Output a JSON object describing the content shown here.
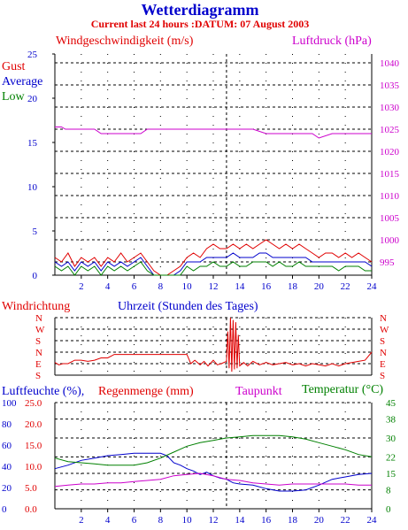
{
  "header": {
    "title": "Wetterdiagramm",
    "subtitle": "Current last 24 hours :DATUM: 07 August 2003"
  },
  "colors": {
    "red": "#e00000",
    "blue": "#0000cc",
    "green": "#008000",
    "magenta": "#cc00cc",
    "axis": "#000000",
    "grid": "#000000"
  },
  "chart_data": [
    {
      "type": "line",
      "id": "wind",
      "title": "Windgeschwindigkeit (m/s)",
      "right_title": "Luftdruck (hPa)",
      "xlim": [
        0,
        24
      ],
      "x_ticks": [
        2,
        4,
        6,
        8,
        10,
        12,
        14,
        16,
        18,
        20,
        22,
        24
      ],
      "ylim": [
        0,
        25
      ],
      "y_ticks": [
        0,
        5,
        10,
        15,
        20,
        25
      ],
      "y2lim": [
        992,
        1042
      ],
      "y2_ticks": [
        995,
        1000,
        1005,
        1010,
        1015,
        1020,
        1025,
        1030,
        1035,
        1040
      ],
      "grid": true,
      "legend": [
        "Gust",
        "Average",
        "Low"
      ],
      "series": [
        {
          "name": "Gust",
          "color": "#e00000",
          "x": [
            0,
            0.5,
            1,
            1.5,
            2,
            2.5,
            3,
            3.5,
            4,
            4.5,
            5,
            5.5,
            6,
            6.5,
            7,
            7.5,
            8,
            8.5,
            9,
            9.5,
            10,
            10.5,
            11,
            11.5,
            12,
            12.5,
            13,
            13.5,
            14,
            14.5,
            15,
            15.5,
            16,
            16.5,
            17,
            17.5,
            18,
            18.5,
            19,
            19.5,
            20,
            20.5,
            21,
            21.5,
            22,
            22.5,
            23,
            23.5,
            24
          ],
          "values": [
            2.0,
            1.5,
            2.5,
            1.0,
            2.0,
            1.5,
            2.0,
            1.0,
            2.0,
            1.5,
            2.5,
            1.5,
            2.0,
            2.5,
            1.5,
            0.5,
            0.0,
            0.0,
            0.5,
            1.0,
            2.0,
            2.5,
            2.0,
            3.0,
            3.5,
            3.0,
            3.0,
            3.5,
            3.0,
            3.5,
            3.0,
            3.5,
            4.0,
            3.5,
            3.0,
            3.5,
            3.0,
            3.5,
            3.0,
            2.5,
            2.0,
            2.5,
            2.5,
            2.0,
            2.5,
            2.0,
            2.5,
            2.0,
            1.5
          ]
        },
        {
          "name": "Average",
          "color": "#0000cc",
          "x": [
            0,
            0.5,
            1,
            1.5,
            2,
            2.5,
            3,
            3.5,
            4,
            4.5,
            5,
            5.5,
            6,
            6.5,
            7,
            7.5,
            8,
            8.5,
            9,
            9.5,
            10,
            10.5,
            11,
            11.5,
            12,
            12.5,
            13,
            13.5,
            14,
            14.5,
            15,
            15.5,
            16,
            16.5,
            17,
            17.5,
            18,
            18.5,
            19,
            19.5,
            20,
            20.5,
            21,
            21.5,
            22,
            22.5,
            23,
            23.5,
            24
          ],
          "values": [
            1.5,
            1.0,
            1.5,
            0.5,
            1.5,
            1.0,
            1.5,
            0.5,
            1.5,
            1.0,
            1.5,
            1.0,
            1.5,
            2.0,
            1.0,
            0.0,
            0.0,
            0.0,
            0.0,
            0.5,
            1.5,
            1.5,
            1.5,
            2.0,
            2.0,
            2.0,
            2.0,
            2.5,
            2.0,
            2.0,
            2.0,
            2.5,
            2.5,
            2.0,
            2.0,
            2.0,
            2.0,
            2.0,
            2.0,
            1.5,
            1.5,
            1.5,
            1.5,
            1.5,
            1.5,
            1.5,
            1.5,
            1.5,
            1.0
          ]
        },
        {
          "name": "Low",
          "color": "#008000",
          "x": [
            0,
            0.5,
            1,
            1.5,
            2,
            2.5,
            3,
            3.5,
            4,
            4.5,
            5,
            5.5,
            6,
            6.5,
            7,
            7.5,
            8,
            8.5,
            9,
            9.5,
            10,
            10.5,
            11,
            11.5,
            12,
            12.5,
            13,
            13.5,
            14,
            14.5,
            15,
            15.5,
            16,
            16.5,
            17,
            17.5,
            18,
            18.5,
            19,
            19.5,
            20,
            20.5,
            21,
            21.5,
            22,
            22.5,
            23,
            23.5,
            24
          ],
          "values": [
            1.0,
            0.5,
            1.0,
            0.0,
            1.0,
            0.5,
            1.0,
            0.0,
            1.0,
            0.5,
            1.0,
            0.5,
            1.0,
            1.5,
            0.5,
            0.0,
            0.0,
            0.0,
            0.0,
            0.0,
            1.0,
            0.5,
            1.0,
            1.0,
            1.5,
            1.0,
            1.0,
            1.5,
            1.0,
            1.0,
            1.5,
            1.5,
            1.5,
            1.0,
            1.5,
            1.0,
            1.0,
            1.5,
            1.0,
            1.0,
            1.0,
            1.0,
            1.0,
            0.5,
            1.0,
            1.0,
            1.0,
            0.5,
            0.5
          ]
        },
        {
          "name": "Luftdruck",
          "axis": "right",
          "color": "#cc00cc",
          "x": [
            0,
            0.5,
            0.8,
            1,
            2,
            3,
            3.5,
            4,
            5,
            6,
            6.5,
            7,
            8,
            9,
            10,
            11,
            12,
            13,
            14,
            15,
            16,
            17,
            18,
            19,
            19.5,
            20,
            21,
            22,
            23,
            24
          ],
          "values": [
            1025.5,
            1025.5,
            1025,
            1025,
            1025,
            1025,
            1024,
            1024,
            1024,
            1024,
            1024,
            1025,
            1025,
            1025,
            1025,
            1025,
            1025,
            1025,
            1025,
            1025,
            1024,
            1024,
            1024,
            1024,
            1024,
            1023,
            1024,
            1024,
            1024,
            1024
          ]
        }
      ]
    },
    {
      "type": "line",
      "id": "direction",
      "title": "Windrichtung",
      "xlabel": "Uhrzeit (Stunden des Tages)",
      "xlim": [
        0,
        24
      ],
      "ylim": [
        0,
        5
      ],
      "y_ticks": [
        "S",
        "E",
        "N",
        "S",
        "W",
        "N"
      ],
      "grid": true,
      "series": [
        {
          "name": "Windrichtung",
          "color": "#e00000",
          "x": [
            0,
            0.3,
            0.6,
            1,
            1.5,
            2,
            2.5,
            3,
            3.5,
            4,
            4.5,
            5,
            6,
            7,
            8,
            9,
            9.5,
            10,
            10.3,
            10.6,
            11,
            11.3,
            11.6,
            12,
            12.3,
            12.6,
            13,
            13.1,
            13.2,
            13.3,
            13.4,
            13.5,
            13.6,
            13.7,
            13.8,
            13.9,
            14,
            14.3,
            14.6,
            15,
            15.5,
            16,
            16.5,
            17,
            17.5,
            18,
            18.5,
            19,
            19.5,
            20,
            20.5,
            21,
            21.5,
            22,
            22.5,
            23,
            23.5,
            24
          ],
          "values": [
            1.1,
            0.9,
            1.0,
            1.0,
            1.3,
            1.3,
            1.2,
            1.3,
            1.5,
            1.5,
            1.8,
            1.8,
            1.8,
            1.8,
            1.8,
            1.8,
            1.8,
            1.8,
            1.0,
            1.3,
            0.9,
            1.2,
            0.8,
            1.3,
            0.9,
            1.0,
            1.2,
            3.8,
            0.6,
            5.0,
            0.3,
            4.8,
            0.5,
            4.6,
            0.6,
            3.5,
            0.8,
            1.1,
            0.8,
            1.2,
            0.9,
            1.1,
            0.9,
            1.0,
            1.1,
            0.9,
            1.0,
            0.8,
            1.0,
            0.9,
            0.8,
            1.0,
            0.8,
            1.0,
            1.1,
            1.2,
            1.3,
            2.0
          ]
        }
      ]
    },
    {
      "type": "line",
      "id": "humidity",
      "left_title_a": "Luftfeuchte (%),",
      "left_title_b": "Regenmenge (mm)",
      "mid_title": "Taupunkt",
      "right_title": "Temperatur (",
      "right_title_unit": "°C)",
      "xlim": [
        0,
        24
      ],
      "x_ticks": [
        2,
        4,
        6,
        8,
        10,
        12,
        14,
        16,
        18,
        20,
        22,
        24
      ],
      "ylim": [
        0,
        45
      ],
      "y_ticks_hum": [
        0,
        20,
        40,
        60,
        80,
        100
      ],
      "y_ticks_rain": [
        "0.0",
        "5.0",
        "10.0",
        "15.0",
        "20.0",
        "25.0"
      ],
      "y_ticks_temp": [
        0,
        8,
        15,
        22,
        30,
        38,
        45
      ],
      "grid": true,
      "series": [
        {
          "name": "Luftfeuchte",
          "color": "#0000cc",
          "x": [
            0,
            1,
            2,
            3,
            4,
            5,
            6,
            7,
            8,
            8.5,
            9,
            9.5,
            10,
            10.5,
            11,
            11.5,
            12,
            12.5,
            13,
            13.5,
            14,
            15,
            16,
            17,
            18,
            19,
            20,
            21,
            22,
            23,
            24
          ],
          "values": [
            17,
            18.5,
            20.5,
            21.5,
            22.5,
            23,
            23.5,
            23.5,
            23.5,
            22.5,
            19.5,
            18.5,
            17,
            16,
            14.5,
            15.5,
            14,
            13,
            12.5,
            11,
            10.5,
            10,
            8.5,
            7.5,
            7.5,
            8,
            10,
            12.5,
            13.5,
            14.5,
            15
          ]
        },
        {
          "name": "Temperatur",
          "color": "#008000",
          "x": [
            0,
            1,
            2,
            3,
            4,
            5,
            6,
            7,
            8,
            9,
            10,
            11,
            12,
            13,
            14,
            15,
            16,
            17,
            18,
            19,
            20,
            21,
            22,
            23,
            24
          ],
          "values": [
            21.5,
            20,
            19.5,
            19,
            18.5,
            18.5,
            18.5,
            19.5,
            21.5,
            24,
            26.5,
            28,
            29,
            30,
            30.5,
            31,
            31,
            31,
            30.5,
            29.5,
            28,
            26.5,
            25,
            23,
            22
          ]
        },
        {
          "name": "Taupunkt",
          "color": "#cc00cc",
          "x": [
            0,
            1,
            2,
            3,
            4,
            5,
            6,
            7,
            8,
            9,
            10,
            11,
            12,
            13,
            14,
            15,
            16,
            17,
            18,
            19,
            20,
            21,
            22,
            23,
            24
          ],
          "values": [
            9.5,
            10,
            10.5,
            10.5,
            11,
            11,
            11.5,
            12,
            12.5,
            14,
            14.5,
            15,
            14,
            12.5,
            12,
            11,
            10.5,
            10,
            10.5,
            10.5,
            10.5,
            10.5,
            10.5,
            10,
            10
          ]
        }
      ]
    }
  ]
}
